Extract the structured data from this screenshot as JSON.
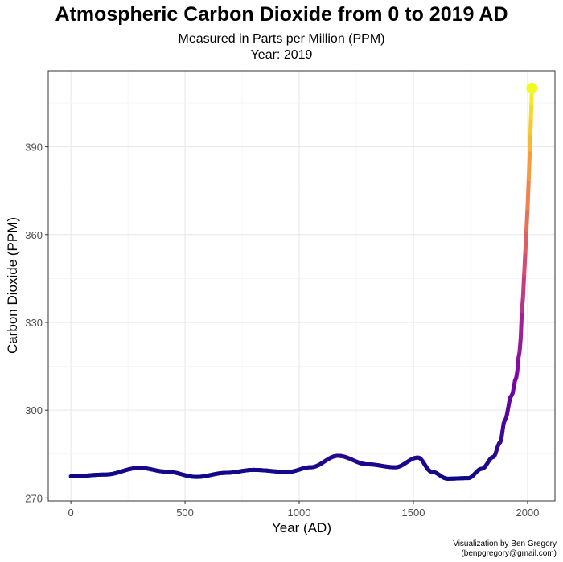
{
  "chart_data": {
    "type": "line",
    "title": "Atmospheric Carbon Dioxide from 0 to 2019 AD",
    "subtitle": "Measured in Parts per Million (PPM)",
    "subtitle2": "Year:  2019",
    "xlabel": "Year (AD)",
    "ylabel": "Carbon Dioxide (PPM)",
    "xlim": [
      -99,
      2120
    ],
    "ylim": [
      269,
      416
    ],
    "xticks": [
      0,
      500,
      1000,
      1500,
      2000
    ],
    "yticks": [
      270,
      300,
      330,
      360,
      390
    ],
    "grid": true,
    "colormap": "plasma",
    "x": [
      0,
      150,
      300,
      420,
      550,
      680,
      800,
      950,
      1050,
      1170,
      1300,
      1420,
      1520,
      1580,
      1650,
      1740,
      1800,
      1850,
      1880,
      1900,
      1930,
      1950,
      1965,
      1980,
      1990,
      2000,
      2010,
      2015
    ],
    "y": [
      277.4,
      278.0,
      280.3,
      279.0,
      277.2,
      278.6,
      279.6,
      278.9,
      280.5,
      284.4,
      281.5,
      280.5,
      283.8,
      279.0,
      276.6,
      276.8,
      280.0,
      284.0,
      289.0,
      296.5,
      305.0,
      311.0,
      320.0,
      338.5,
      354.0,
      369.0,
      389.0,
      400.0
    ],
    "highlight_point": {
      "x": 2019,
      "y": 410,
      "color": "#f0f921"
    },
    "caption": [
      "Visualization by Ben Gregory",
      "(benpgregory@gmail.com)"
    ]
  }
}
